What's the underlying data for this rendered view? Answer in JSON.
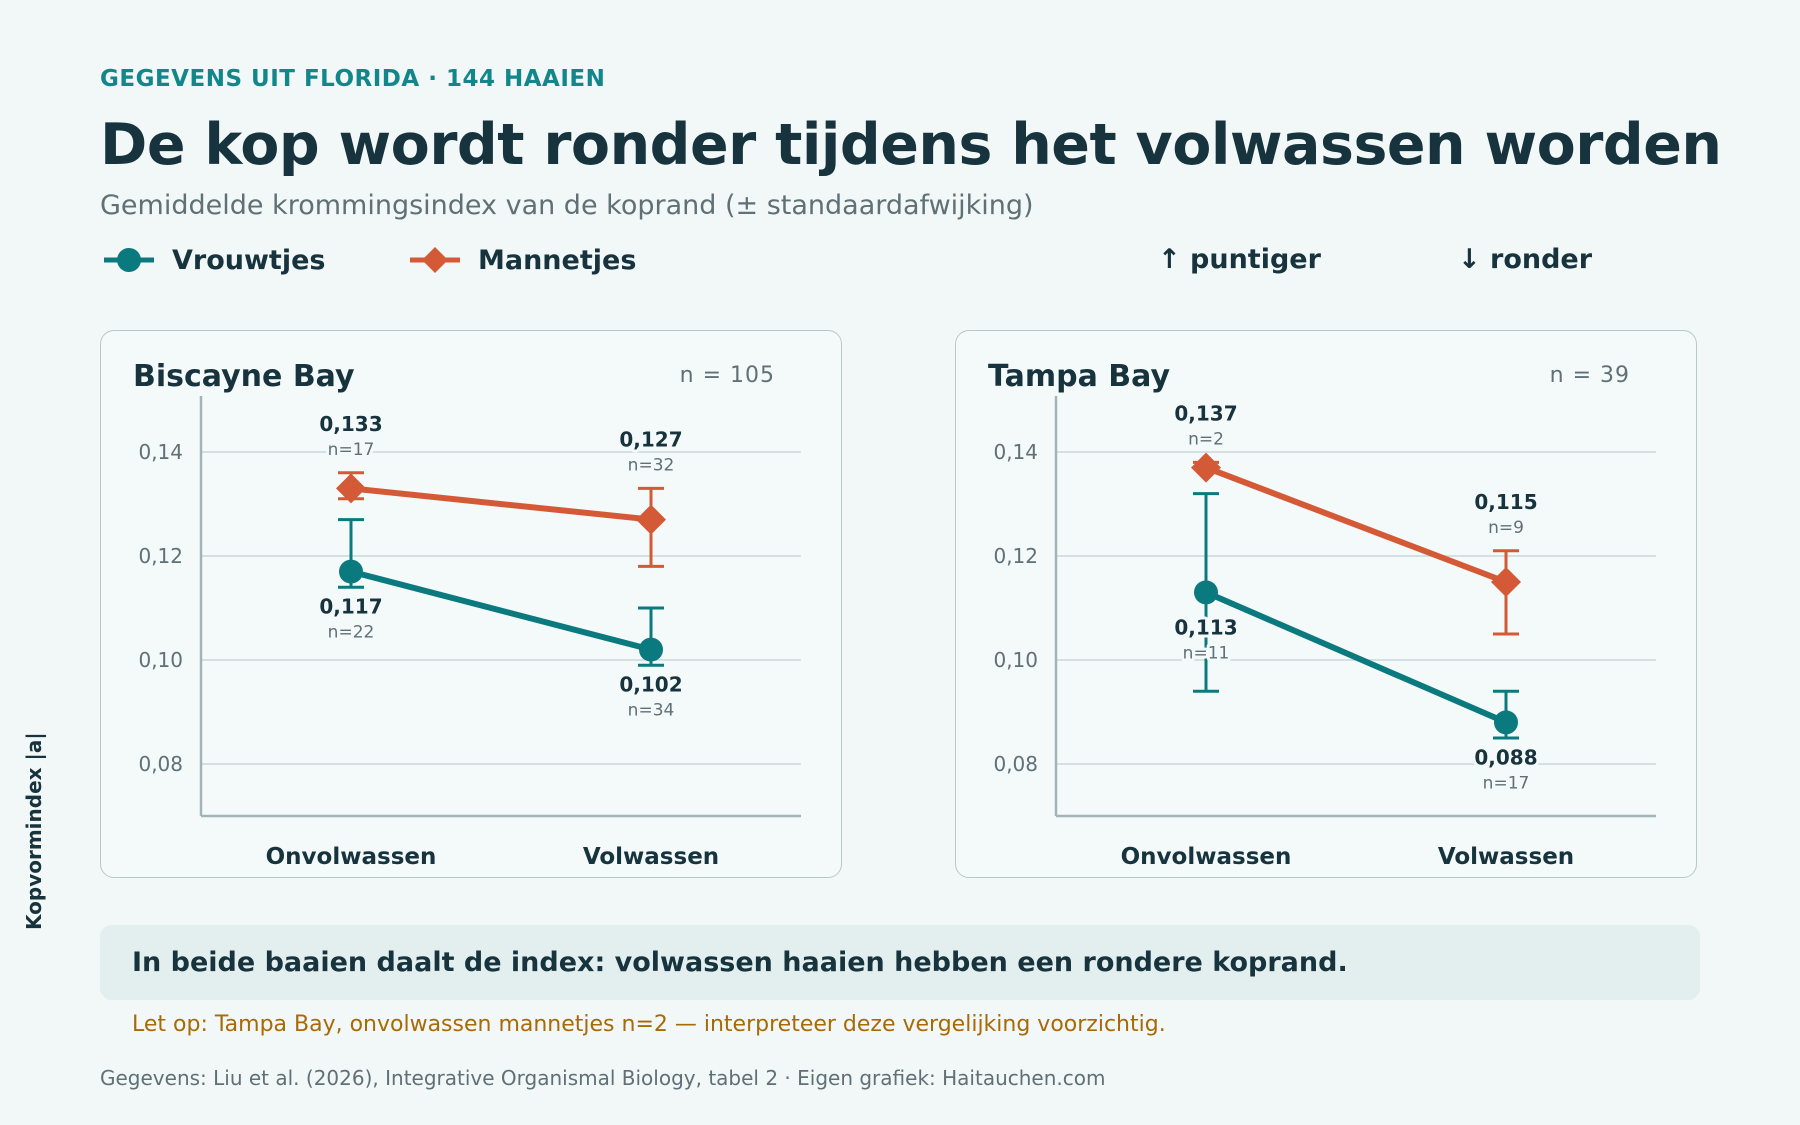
{
  "header": {
    "eyebrow": "GEGEVENS UIT FLORIDA · 144 HAAIEN",
    "title": "De kop wordt ronder tijdens het volwassen worden",
    "subtitle": "Gemiddelde krommingsindex van de koprand (± standaardafwijking)"
  },
  "legend": {
    "females": "Vrouwtjes",
    "males": "Mannetjes",
    "up_note": "↑ puntiger",
    "down_note": "↓ ronder"
  },
  "colors": {
    "females": "#0b7a7e",
    "males": "#d45a37"
  },
  "y_axis_label": "Kopvormindex |a|",
  "callout": "In beide baaien daalt de index: volwassen haaien hebben een rondere koprand.",
  "warning": "Let op: Tampa Bay, onvolwassen mannetjes n=2 — interpreteer deze vergelijking voorzichtig.",
  "source": "Gegevens: Liu et al. (2026), Integrative Organismal Biology, tabel 2 · Eigen grafiek: Haitauchen.com",
  "chart_data": [
    {
      "type": "line",
      "title": "Biscayne Bay",
      "n_label": "n = 105",
      "categories": [
        "Onvolwassen",
        "Volwassen"
      ],
      "ylim": [
        0.07,
        0.145
      ],
      "yticks": [
        0.08,
        0.1,
        0.12,
        0.14
      ],
      "ytick_labels": [
        "0,08",
        "0,10",
        "0,12",
        "0,14"
      ],
      "grid": true,
      "series": [
        {
          "name": "Mannetjes",
          "marker": "diamond",
          "values": [
            0.133,
            0.127
          ],
          "err_low": [
            0.131,
            0.118
          ],
          "err_high": [
            0.136,
            0.133
          ],
          "value_labels": [
            "0,133",
            "0,127"
          ],
          "n_labels": [
            "n=17",
            "n=32"
          ],
          "label_pos": [
            "above",
            "above"
          ]
        },
        {
          "name": "Vrouwtjes",
          "marker": "circle",
          "values": [
            0.117,
            0.102
          ],
          "err_low": [
            0.114,
            0.099
          ],
          "err_high": [
            0.127,
            0.11
          ],
          "value_labels": [
            "0,117",
            "0,102"
          ],
          "n_labels": [
            "n=22",
            "n=34"
          ],
          "label_pos": [
            "below",
            "below"
          ]
        }
      ]
    },
    {
      "type": "line",
      "title": "Tampa Bay",
      "n_label": "n = 39",
      "categories": [
        "Onvolwassen",
        "Volwassen"
      ],
      "ylim": [
        0.07,
        0.145
      ],
      "yticks": [
        0.08,
        0.1,
        0.12,
        0.14
      ],
      "ytick_labels": [
        "0,08",
        "0,10",
        "0,12",
        "0,14"
      ],
      "grid": true,
      "series": [
        {
          "name": "Mannetjes",
          "marker": "diamond",
          "values": [
            0.137,
            0.115
          ],
          "err_low": [
            0.137,
            0.105
          ],
          "err_high": [
            0.138,
            0.121
          ],
          "value_labels": [
            "0,137",
            "0,115"
          ],
          "n_labels": [
            "n=2",
            "n=9"
          ],
          "label_pos": [
            "above",
            "above"
          ]
        },
        {
          "name": "Vrouwtjes",
          "marker": "circle",
          "values": [
            0.113,
            0.088
          ],
          "err_low": [
            0.094,
            0.085
          ],
          "err_high": [
            0.132,
            0.094
          ],
          "value_labels": [
            "0,113",
            "0,088"
          ],
          "n_labels": [
            "n=11",
            "n=17"
          ],
          "label_pos": [
            "below",
            "below"
          ]
        }
      ]
    }
  ]
}
